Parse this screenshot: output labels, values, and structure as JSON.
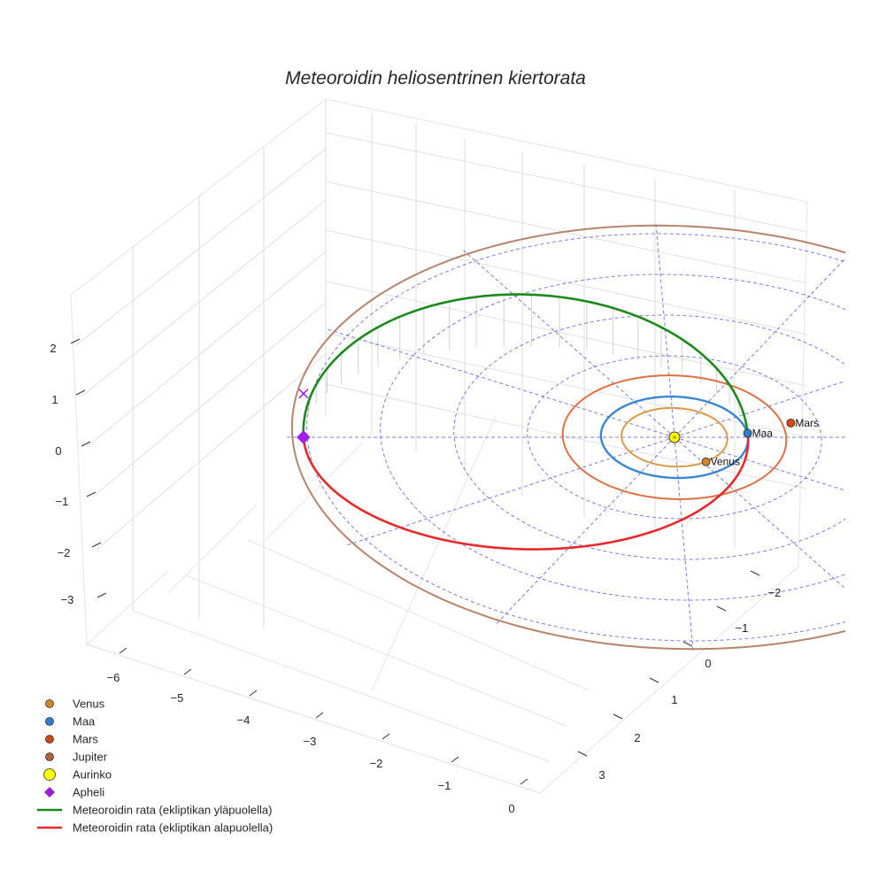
{
  "chart_data": {
    "type": "line",
    "projection": "3d",
    "title": "Meteoroidin heliosentrinen kiertorata",
    "axes": {
      "x": {
        "ticks": [
          "−6",
          "−5",
          "−4",
          "−3",
          "−2",
          "−1",
          "0"
        ]
      },
      "y": {
        "ticks": [
          "−2",
          "−1",
          "0",
          "1",
          "2",
          "3"
        ]
      },
      "z": {
        "ticks": [
          "2",
          "1",
          "0",
          "−1",
          "−2",
          "−3"
        ]
      }
    },
    "grid": true,
    "ecliptic_grid": {
      "rings_au": [
        1,
        2,
        3,
        4,
        5
      ],
      "radial_lines": 12,
      "color": "#5050e0"
    },
    "orbits": [
      {
        "name": "Venus",
        "radius_au": 0.72,
        "color": "#d4943a"
      },
      {
        "name": "Maa",
        "radius_au": 1.0,
        "color": "#2b7fd0"
      },
      {
        "name": "Mars",
        "radius_au": 1.52,
        "color": "#dc6434"
      },
      {
        "name": "Jupiter",
        "radius_au": 5.2,
        "color": "#b07a5e"
      }
    ],
    "meteoroid_orbit": {
      "perihelion_au": 1.0,
      "aphelion_au": 5.05,
      "z_amplitude_au": 1.0,
      "series": [
        {
          "name": "Meteoroidin rata (ekliptikan yläpuolella)",
          "color": "#1a8a1a"
        },
        {
          "name": "Meteoroidin rata (ekliptikan alapuolella)",
          "color": "#e8282a"
        }
      ]
    },
    "bodies": [
      {
        "name": "Aurinko",
        "x": 0,
        "y": 0,
        "z": 0,
        "color": "#ffff00",
        "marker": "circle"
      },
      {
        "name": "Venus",
        "x": 0.4,
        "y": 0.6,
        "z": 0,
        "color": "#d4842a",
        "marker": "circle",
        "label": "Venus"
      },
      {
        "name": "Maa",
        "x": 1.0,
        "y": -0.1,
        "z": 0,
        "color": "#2b7fd0",
        "marker": "circle",
        "label": "Maa"
      },
      {
        "name": "Mars",
        "x": 1.6,
        "y": -0.35,
        "z": 0,
        "color": "#dc4a14",
        "marker": "circle",
        "label": "Mars"
      },
      {
        "name": "Apheli",
        "x": -5.05,
        "y": 0,
        "z": 0,
        "color": "#a020f0",
        "marker": "diamond"
      }
    ],
    "legend": {
      "placement": "bottom-left",
      "entries": [
        {
          "label": "Venus",
          "kind": "dot",
          "color": "#d4842a"
        },
        {
          "label": "Maa",
          "kind": "dot",
          "color": "#2b7fd0"
        },
        {
          "label": "Mars",
          "kind": "dot",
          "color": "#cc4a14"
        },
        {
          "label": "Jupiter",
          "kind": "dot",
          "color": "#b0603a"
        },
        {
          "label": "Aurinko",
          "kind": "bigdot",
          "color": "#ffff00"
        },
        {
          "label": "Apheli",
          "kind": "diamond",
          "color": "#9b1ed8"
        },
        {
          "label": "Meteoroidin rata (ekliptikan yläpuolella)",
          "kind": "line",
          "color": "#1a8a1a"
        },
        {
          "label": "Meteoroidin rata (ekliptikan alapuolella)",
          "kind": "line",
          "color": "#e8282a"
        }
      ]
    }
  }
}
